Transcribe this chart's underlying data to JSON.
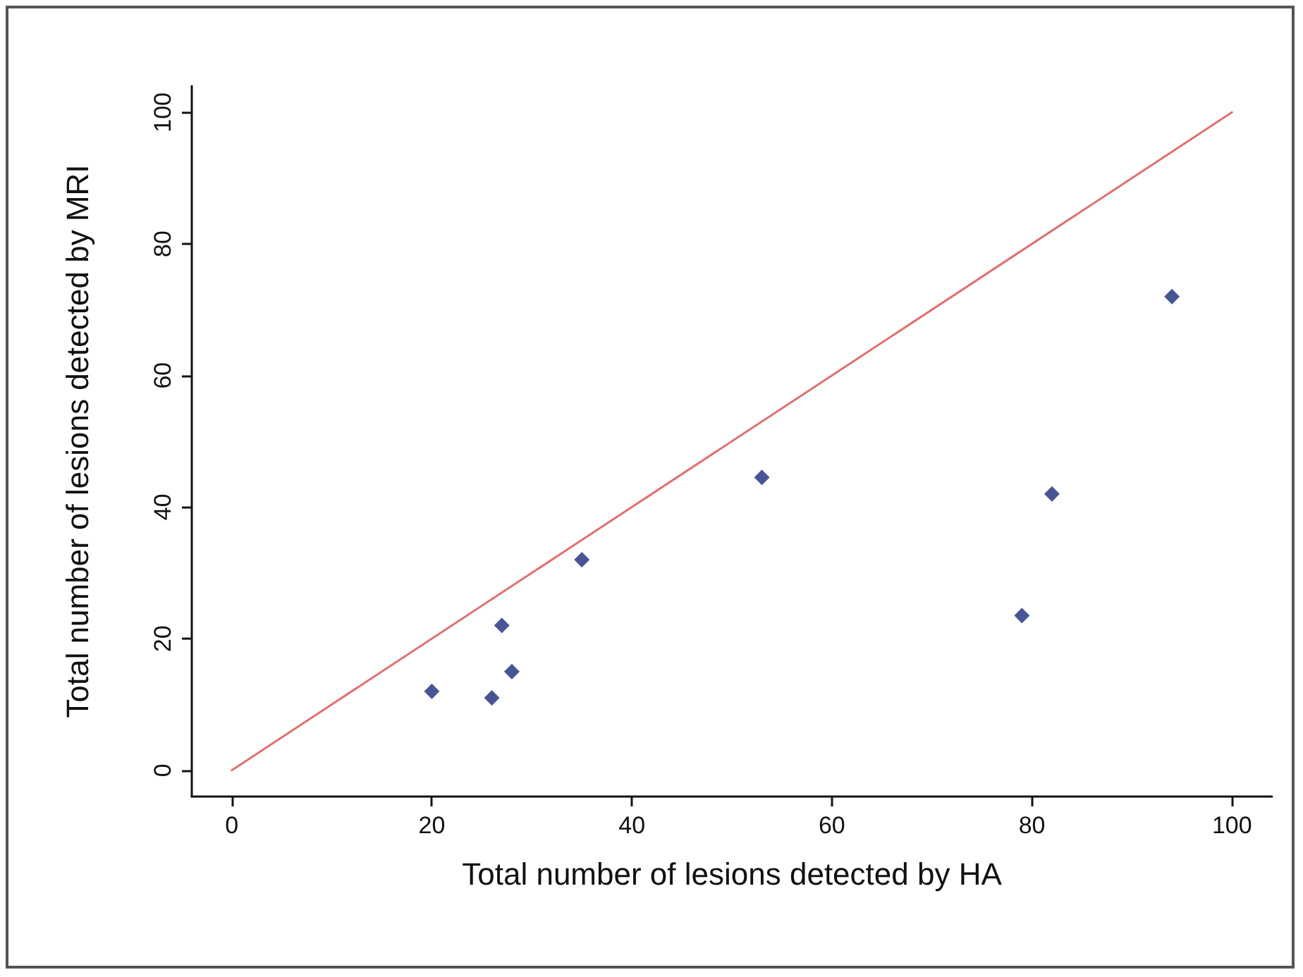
{
  "chart_data": {
    "type": "scatter",
    "xlabel": "Total number of lesions detected by HA",
    "ylabel": "Total number of lesions detected by MRI",
    "x": [
      20,
      26,
      27,
      28,
      35,
      53,
      79,
      82,
      94
    ],
    "series": [
      {
        "color": "#1a2a7a",
        "values": [
          12,
          11,
          22,
          15,
          32,
          44.5,
          23.5,
          42,
          72
        ]
      },
      {
        "type": "line",
        "x": [
          0,
          100
        ],
        "values": [
          0,
          100
        ],
        "color": "#e07070",
        "marker": "none"
      }
    ],
    "xlim": [
      -4,
      104
    ],
    "ylim": [
      -4,
      104
    ],
    "xticks": [
      0,
      20,
      40,
      60,
      80,
      100
    ],
    "yticks": [
      0,
      20,
      40,
      60,
      80,
      100
    ],
    "grid": false,
    "marker": "diamond",
    "line_style": "solid"
  }
}
